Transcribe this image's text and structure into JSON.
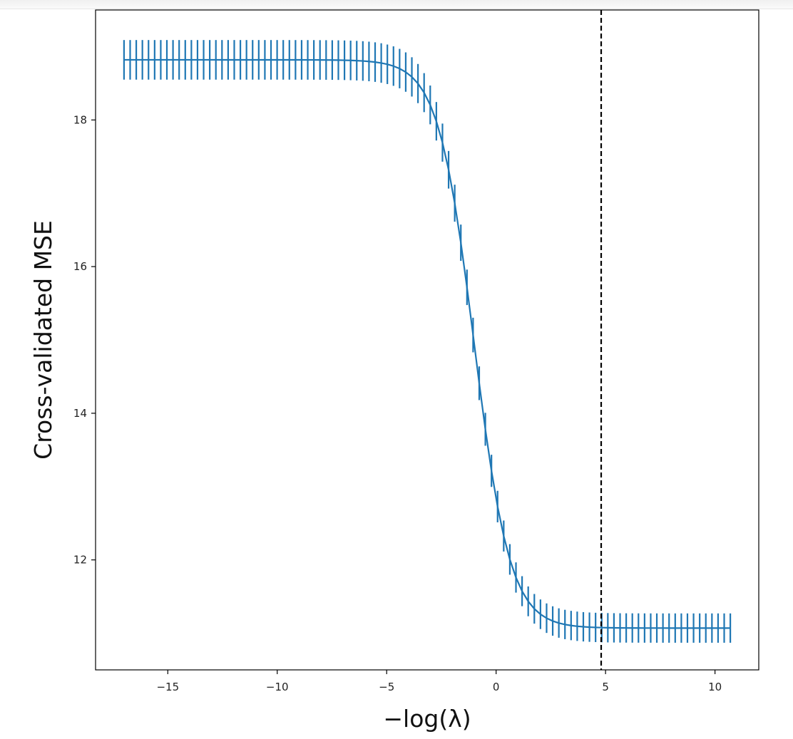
{
  "chart_data": {
    "type": "line",
    "title": "",
    "xlabel": "−log(λ)",
    "ylabel": "Cross-validated MSE",
    "xlim": [
      -18.3,
      12.0
    ],
    "ylim": [
      10.5,
      19.5
    ],
    "x_ticks": [
      -15,
      -10,
      -5,
      0,
      5,
      10
    ],
    "x_tick_labels": [
      "−15",
      "−10",
      "−5",
      "0",
      "5",
      "10"
    ],
    "y_ticks": [
      12,
      14,
      16,
      18
    ],
    "y_tick_labels": [
      "12",
      "14",
      "16",
      "18"
    ],
    "series": [
      {
        "name": "cv_mse",
        "color": "#1f77b4",
        "x_start": -17.0,
        "x_end": 10.7,
        "n_points": 100,
        "curve": {
          "high": 18.82,
          "low": 11.07,
          "midpoint": -1.0,
          "scale": 0.82
        },
        "error_halfwidth": {
          "high": 0.27,
          "low": 0.2
        }
      }
    ],
    "vline": {
      "x": 4.8,
      "color": "#000000",
      "style": "dashed"
    },
    "grid": false
  }
}
